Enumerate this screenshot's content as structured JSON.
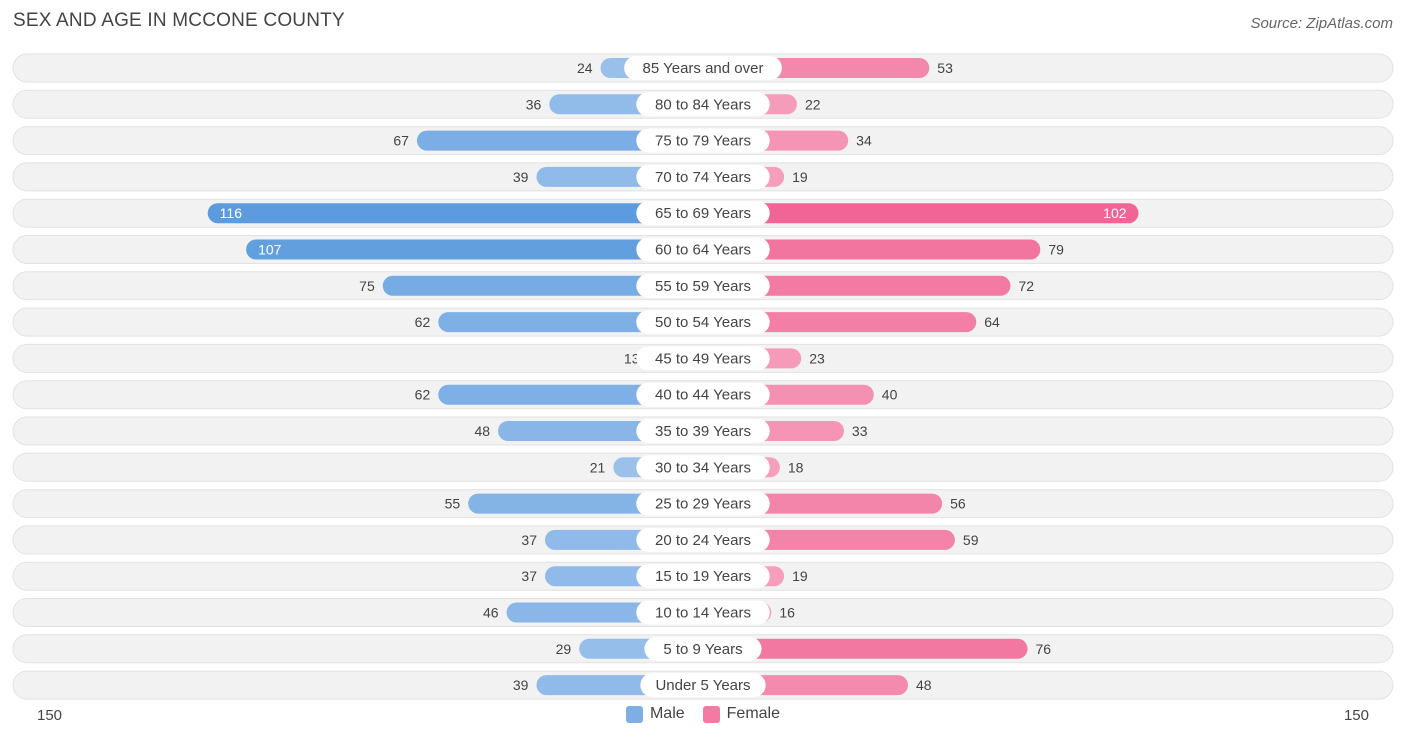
{
  "title": "SEX AND AGE IN MCCONE COUNTY",
  "source": "Source: ZipAtlas.com",
  "colors": {
    "male": "#5b9bde",
    "female": "#f06595",
    "row_bg": "#f2f2f2"
  },
  "chart_data": {
    "type": "bar",
    "orientation": "horizontal-diverging",
    "categories": [
      "85 Years and over",
      "80 to 84 Years",
      "75 to 79 Years",
      "70 to 74 Years",
      "65 to 69 Years",
      "60 to 64 Years",
      "55 to 59 Years",
      "50 to 54 Years",
      "45 to 49 Years",
      "40 to 44 Years",
      "35 to 39 Years",
      "30 to 34 Years",
      "25 to 29 Years",
      "20 to 24 Years",
      "15 to 19 Years",
      "10 to 14 Years",
      "5 to 9 Years",
      "Under 5 Years"
    ],
    "series": [
      {
        "name": "Male",
        "values": [
          24,
          36,
          67,
          39,
          116,
          107,
          75,
          62,
          13,
          62,
          48,
          21,
          55,
          37,
          37,
          46,
          29,
          39
        ]
      },
      {
        "name": "Female",
        "values": [
          53,
          22,
          34,
          19,
          102,
          79,
          72,
          64,
          23,
          40,
          33,
          18,
          56,
          59,
          19,
          16,
          76,
          48
        ]
      }
    ],
    "axis_max": 150,
    "axis_left_label": "150",
    "axis_right_label": "150",
    "legend": [
      "Male",
      "Female"
    ]
  }
}
